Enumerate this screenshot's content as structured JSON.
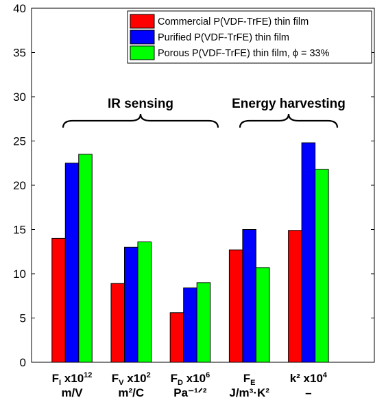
{
  "chart_data": {
    "type": "bar",
    "title": "",
    "xlabel": "",
    "ylabel": "",
    "ylim": [
      0,
      40
    ],
    "yticks": [
      0,
      5,
      10,
      15,
      20,
      25,
      30,
      35,
      40
    ],
    "grid": false,
    "legend_position": "top-right",
    "colors": [
      "#ff0000",
      "#0000ff",
      "#00ff00"
    ],
    "categories": [
      {
        "main": "F",
        "sub": "I",
        "rest": " x10",
        "sup": "12",
        "line2": "m/V"
      },
      {
        "main": "F",
        "sub": "V",
        "rest": " x10",
        "sup": "2",
        "line2": "m²/C"
      },
      {
        "main": "F",
        "sub": "D",
        "rest": " x10",
        "sup": "6",
        "line2": "Pa⁻¹ᐟ²"
      },
      {
        "main": "F",
        "sub": "E",
        "rest": "",
        "sup": "",
        "line2": "J/m³·K²"
      },
      {
        "main": "k",
        "sub": "",
        "rest": "² x10",
        "sup": "4",
        "line2": "–"
      }
    ],
    "series": [
      {
        "name": "Commercial P(VDF-TrFE) thin film",
        "values": [
          14.0,
          8.9,
          5.6,
          12.7,
          14.9
        ]
      },
      {
        "name": "Purified P(VDF-TrFE) thin film",
        "values": [
          22.5,
          13.0,
          8.4,
          15.0,
          24.8
        ]
      },
      {
        "name": "Porous P(VDF-TrFE) thin film, ϕ = 33%",
        "values": [
          23.5,
          13.6,
          9.0,
          10.7,
          21.8
        ]
      }
    ],
    "annotations": [
      {
        "text": "IR sensing",
        "categories": [
          0,
          2
        ]
      },
      {
        "text": "Energy harvesting",
        "categories": [
          3,
          4
        ]
      }
    ]
  }
}
